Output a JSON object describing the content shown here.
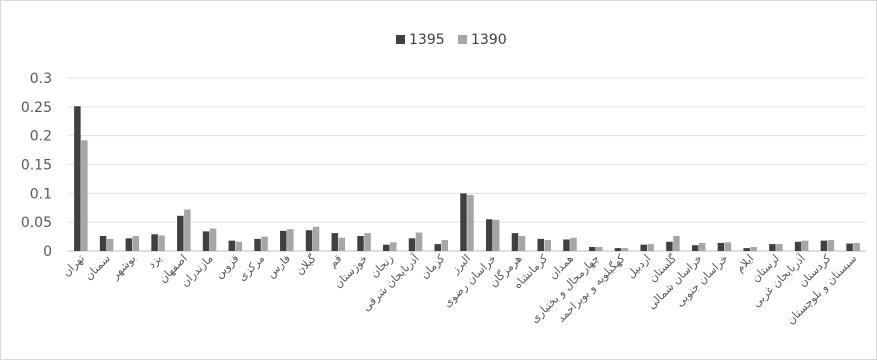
{
  "chart_data": {
    "type": "bar",
    "categories": [
      "تهران",
      "سمنان",
      "بوشهر",
      "یزد",
      "اصفهان",
      "مازندران",
      "قزوین",
      "مرکزی",
      "فارس",
      "گیلان",
      "قم",
      "خوزستان",
      "زنجان",
      "آذربایجان شرقی",
      "کرمان",
      "البرز",
      "خراسان رضوی",
      "هرمزگان",
      "کرمانشاه",
      "همدان",
      "چهارمحال و بختیاری",
      "کهگیلویه و بویراحمد",
      "اردبیل",
      "گلستان",
      "خراسان شمالی",
      "خراسان جنوبی",
      "ایلام",
      "لرستان",
      "آذربایجان غربی",
      "کردستان",
      "سیستان و بلوچستان"
    ],
    "series": [
      {
        "name": "1395",
        "color": "#404040",
        "values": [
          0.251,
          0.026,
          0.022,
          0.029,
          0.061,
          0.034,
          0.018,
          0.021,
          0.035,
          0.036,
          0.031,
          0.026,
          0.011,
          0.022,
          0.012,
          0.1,
          0.055,
          0.031,
          0.021,
          0.02,
          0.007,
          0.005,
          0.011,
          0.016,
          0.01,
          0.014,
          0.005,
          0.012,
          0.016,
          0.018,
          0.013
        ]
      },
      {
        "name": "1390",
        "color": "#a6a6a6",
        "values": [
          0.192,
          0.021,
          0.026,
          0.027,
          0.072,
          0.039,
          0.016,
          0.025,
          0.038,
          0.042,
          0.023,
          0.031,
          0.015,
          0.032,
          0.019,
          0.097,
          0.054,
          0.026,
          0.019,
          0.023,
          0.007,
          0.005,
          0.012,
          0.026,
          0.014,
          0.015,
          0.007,
          0.012,
          0.018,
          0.019,
          0.014
        ]
      }
    ],
    "yticks": [
      "0",
      "0.05",
      "0.1",
      "0.15",
      "0.2",
      "0.25",
      "0.3"
    ],
    "ylim": [
      0,
      0.3
    ],
    "legend_position": "top-center",
    "grid": "horizontal"
  }
}
